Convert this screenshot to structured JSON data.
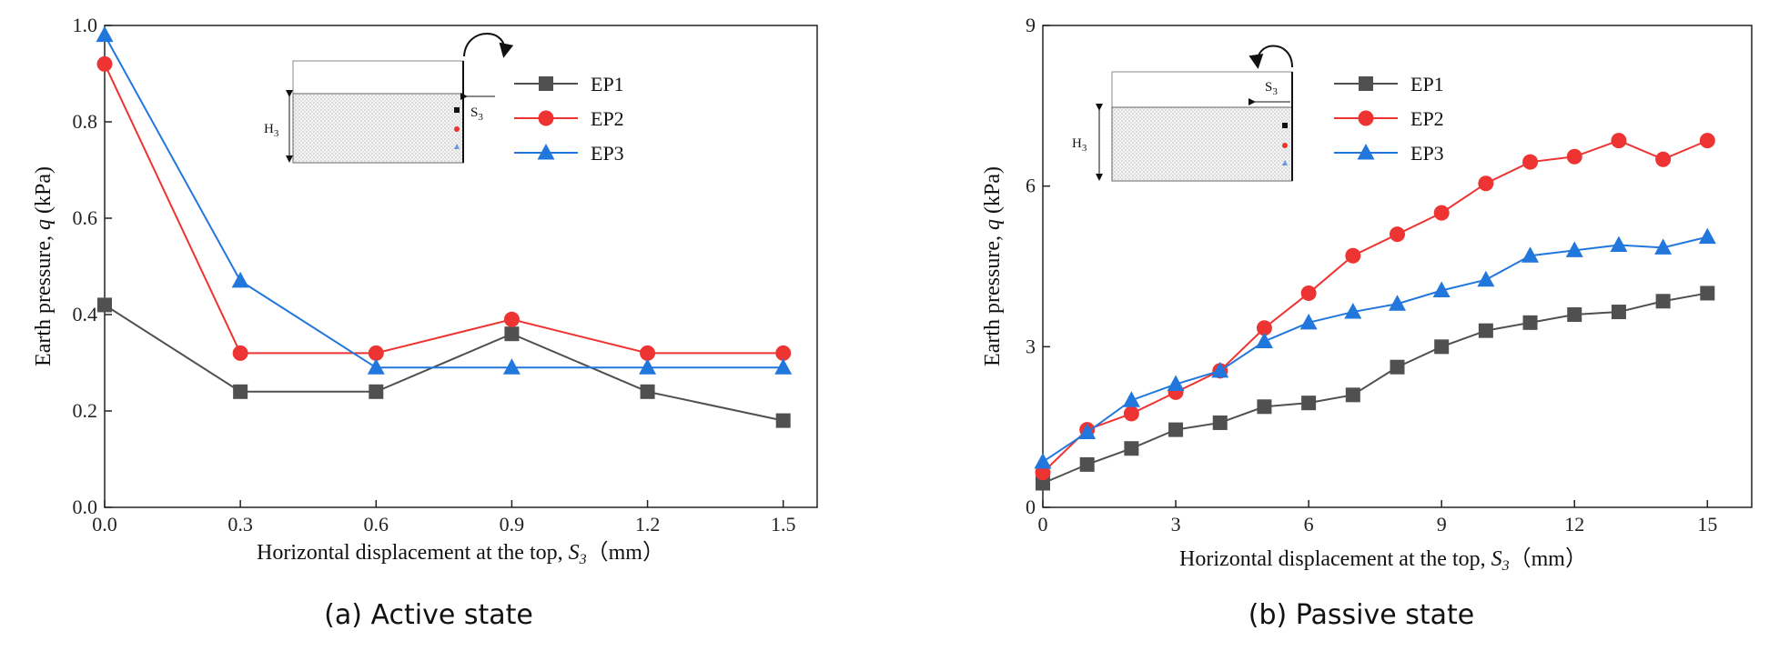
{
  "chart_data": [
    {
      "type": "line",
      "caption": "(a) Active state",
      "xlabel_prefix": "Horizontal displacement at the top, ",
      "xlabel_var": "S",
      "xlabel_sub": "3",
      "xlabel_unit": "（mm）",
      "ylabel_prefix": "Earth pressure, ",
      "ylabel_var": "q",
      "ylabel_unit": " (kPa)",
      "xlim": [
        0,
        1.575
      ],
      "ylim": [
        0,
        1.0
      ],
      "xticks": [
        0,
        0.3,
        0.6,
        0.9,
        1.2,
        1.5
      ],
      "xtick_labels": [
        "0.0",
        "0.3",
        "0.6",
        "0.9",
        "1.2",
        "1.5"
      ],
      "yticks": [
        0,
        0.2,
        0.4,
        0.6,
        0.8,
        1.0
      ],
      "ytick_labels": [
        "0.0",
        "0.2",
        "0.4",
        "0.6",
        "0.8",
        "1.0"
      ],
      "x": [
        0,
        0.3,
        0.6,
        0.9,
        1.2,
        1.5
      ],
      "series": [
        {
          "name": "EP1",
          "color": "#505050",
          "marker": "square",
          "values": [
            0.42,
            0.24,
            0.24,
            0.36,
            0.24,
            0.18
          ]
        },
        {
          "name": "EP2",
          "color": "#ee3333",
          "marker": "circle",
          "values": [
            0.92,
            0.32,
            0.32,
            0.39,
            0.32,
            0.32
          ]
        },
        {
          "name": "EP3",
          "color": "#2277dd",
          "marker": "triangle",
          "values": [
            0.98,
            0.47,
            0.29,
            0.29,
            0.29,
            0.29
          ]
        }
      ],
      "legend_position": "top-right",
      "inset_labels": {
        "h": "H",
        "h_sub": "3",
        "s": "S",
        "s_sub": "3"
      }
    },
    {
      "type": "line",
      "caption": "(b) Passive state",
      "xlabel_prefix": "Horizontal displacement at the top, ",
      "xlabel_var": "S",
      "xlabel_sub": "3",
      "xlabel_unit": "（mm）",
      "ylabel_prefix": "Earth pressure, ",
      "ylabel_var": "q",
      "ylabel_unit": " (kPa)",
      "xlim": [
        0,
        16
      ],
      "ylim": [
        0,
        9
      ],
      "xticks": [
        0,
        3,
        6,
        9,
        12,
        15
      ],
      "xtick_labels": [
        "0",
        "3",
        "6",
        "9",
        "12",
        "15"
      ],
      "yticks": [
        0,
        3,
        6,
        9
      ],
      "ytick_labels": [
        "0",
        "3",
        "6",
        "9"
      ],
      "x": [
        0,
        1,
        2,
        3,
        4,
        5,
        6,
        7,
        8,
        9,
        10,
        11,
        12,
        13,
        14,
        15
      ],
      "series": [
        {
          "name": "EP1",
          "color": "#505050",
          "marker": "square",
          "values": [
            0.45,
            0.8,
            1.1,
            1.45,
            1.58,
            1.88,
            1.95,
            2.1,
            2.62,
            3.0,
            3.3,
            3.45,
            3.6,
            3.65,
            3.85,
            4.0
          ]
        },
        {
          "name": "EP2",
          "color": "#ee3333",
          "marker": "circle",
          "values": [
            0.65,
            1.45,
            1.75,
            2.15,
            2.55,
            3.35,
            4.0,
            4.7,
            5.1,
            5.5,
            6.05,
            6.45,
            6.55,
            6.85,
            6.5,
            6.85
          ]
        },
        {
          "name": "EP3",
          "color": "#2277dd",
          "marker": "triangle",
          "values": [
            0.85,
            1.4,
            2.0,
            2.3,
            2.55,
            3.1,
            3.45,
            3.65,
            3.8,
            4.05,
            4.25,
            4.7,
            4.8,
            4.9,
            4.85,
            5.05
          ]
        }
      ],
      "legend_position": "top-left",
      "inset_labels": {
        "h": "H",
        "h_sub": "3",
        "s": "S",
        "s_sub": "3"
      }
    }
  ]
}
